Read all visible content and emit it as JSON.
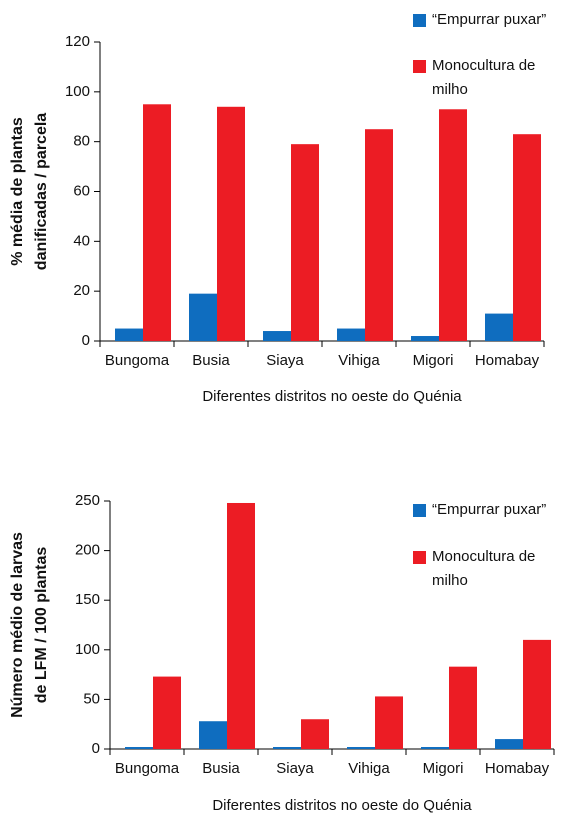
{
  "chart_data": [
    {
      "type": "bar",
      "ylabel": [
        "% média de plantas",
        "danificadas / parcela"
      ],
      "xlabel": "Diferentes distritos no oeste do Quénia",
      "categories": [
        "Bungoma",
        "Busia",
        "Siaya",
        "Vihiga",
        "Migori",
        "Homabay"
      ],
      "series": [
        {
          "name": "“Empurrar puxar”",
          "color": "#0f6dbf",
          "values": [
            5,
            19,
            4,
            5,
            2,
            11
          ]
        },
        {
          "name": "Monocultura de milho",
          "color": "#ec1c24",
          "values": [
            95,
            94,
            79,
            85,
            93,
            83
          ]
        }
      ],
      "ylim": [
        0,
        120
      ],
      "yticks": [
        0,
        20,
        40,
        60,
        80,
        100,
        120
      ],
      "legend": "upper right"
    },
    {
      "type": "bar",
      "ylabel": [
        "Número médio de larvas",
        "de LFM / 100 plantas"
      ],
      "xlabel": "Diferentes distritos no oeste do Quénia",
      "categories": [
        "Bungoma",
        "Busia",
        "Siaya",
        "Vihiga",
        "Migori",
        "Homabay"
      ],
      "series": [
        {
          "name": "“Empurrar puxar”",
          "color": "#0f6dbf",
          "values": [
            2,
            28,
            2,
            2,
            2,
            10
          ]
        },
        {
          "name": "Monocultura de milho",
          "color": "#ec1c24",
          "values": [
            73,
            248,
            30,
            53,
            83,
            110
          ]
        }
      ],
      "ylim": [
        0,
        250
      ],
      "yticks": [
        0,
        50,
        100,
        150,
        200,
        250
      ],
      "legend": "upper right"
    }
  ]
}
